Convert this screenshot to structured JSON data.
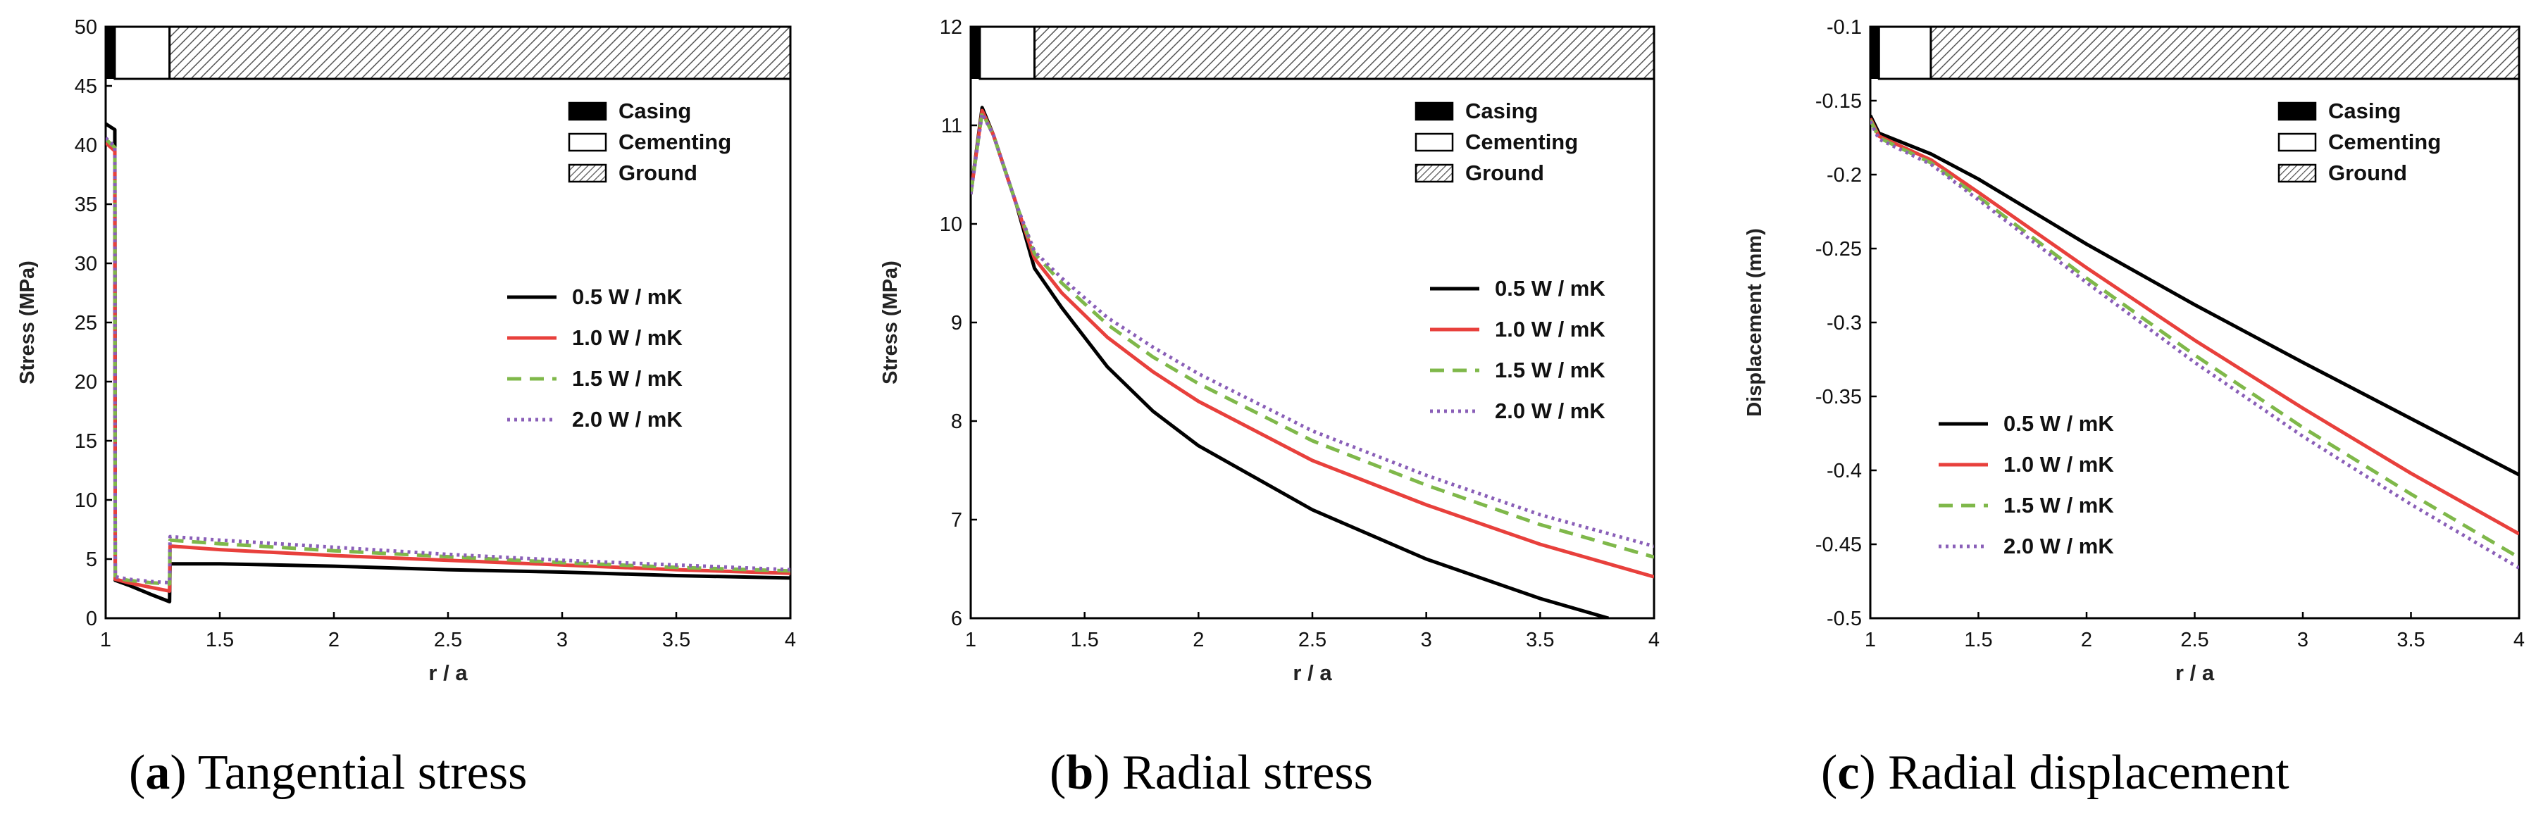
{
  "captions": [
    {
      "letter": "a",
      "text": "Tangential stress"
    },
    {
      "letter": "b",
      "text": "Radial stress"
    },
    {
      "letter": "c",
      "text": "Radial displacement"
    }
  ],
  "colors": {
    "0.5": "#000000",
    "1.0": "#e8403c",
    "1.5": "#7fb84a",
    "2.0": "#8a5fb8"
  },
  "chart_data": [
    {
      "type": "line",
      "id": "a",
      "title": "Tangential stress",
      "xlabel": "r / a",
      "ylabel": "Stress (MPa)",
      "xlim": [
        1,
        4
      ],
      "ylim": [
        0,
        50
      ],
      "xticks": [
        1,
        1.5,
        2,
        2.5,
        3,
        3.5,
        4
      ],
      "xtick_labels": [
        "1",
        "1.5",
        "2",
        "2.5",
        "3",
        "3.5",
        "4"
      ],
      "yticks": [
        0,
        5,
        10,
        15,
        20,
        25,
        30,
        35,
        40,
        45,
        50
      ],
      "ytick_labels": [
        "0",
        "5",
        "10",
        "15",
        "20",
        "25",
        "30",
        "35",
        "40",
        "45",
        "50"
      ],
      "material_legend": [
        "Casing",
        "Cementing",
        "Ground"
      ],
      "series": [
        {
          "name": "0.5 W / mK",
          "key": "0.5",
          "dash": "solid",
          "x": [
            1,
            1.04,
            1.042,
            1.1,
            1.2,
            1.28,
            1.282,
            1.5,
            2,
            2.5,
            3,
            3.5,
            4
          ],
          "y": [
            41.8,
            41.3,
            3.2,
            2.8,
            2.0,
            1.4,
            4.6,
            4.6,
            4.4,
            4.1,
            3.9,
            3.6,
            3.4
          ]
        },
        {
          "name": "1.0 W / mK",
          "key": "1.0",
          "dash": "solid",
          "x": [
            1,
            1.04,
            1.042,
            1.1,
            1.2,
            1.28,
            1.282,
            1.5,
            2,
            2.5,
            3,
            3.5,
            4
          ],
          "y": [
            40.2,
            39.5,
            3.3,
            3.0,
            2.6,
            2.3,
            6.1,
            5.8,
            5.3,
            4.9,
            4.5,
            4.1,
            3.8
          ]
        },
        {
          "name": "1.5 W / mK",
          "key": "1.5",
          "dash": "dashed",
          "x": [
            1,
            1.04,
            1.042,
            1.1,
            1.2,
            1.28,
            1.282,
            1.5,
            2,
            2.5,
            3,
            3.5,
            4
          ],
          "y": [
            40.5,
            39.8,
            3.4,
            3.2,
            3.0,
            2.9,
            6.6,
            6.3,
            5.7,
            5.2,
            4.7,
            4.3,
            4.0
          ]
        },
        {
          "name": "2.0 W / mK",
          "key": "2.0",
          "dash": "dotted",
          "x": [
            1,
            1.04,
            1.042,
            1.1,
            1.2,
            1.28,
            1.282,
            1.5,
            2,
            2.5,
            3,
            3.5,
            4
          ],
          "y": [
            40.6,
            39.9,
            3.5,
            3.3,
            3.1,
            3.0,
            6.9,
            6.6,
            6.0,
            5.4,
            4.9,
            4.5,
            4.1
          ]
        }
      ]
    },
    {
      "type": "line",
      "id": "b",
      "title": "Radial stress",
      "xlabel": "r / a",
      "ylabel": "Stress (MPa)",
      "xlim": [
        1,
        4
      ],
      "ylim": [
        6,
        12
      ],
      "xticks": [
        1,
        1.5,
        2,
        2.5,
        3,
        3.5,
        4
      ],
      "xtick_labels": [
        "1",
        "1.5",
        "2",
        "2.5",
        "3",
        "3.5",
        "4"
      ],
      "yticks": [
        6,
        7,
        8,
        9,
        10,
        11,
        12
      ],
      "ytick_labels": [
        "6",
        "7",
        "8",
        "9",
        "10",
        "11",
        "12"
      ],
      "material_legend": [
        "Casing",
        "Cementing",
        "Ground"
      ],
      "series": [
        {
          "name": "0.5 W / mK",
          "key": "0.5",
          "dash": "solid",
          "x": [
            1,
            1.05,
            1.1,
            1.2,
            1.28,
            1.4,
            1.6,
            1.8,
            2,
            2.5,
            3,
            3.5,
            3.8
          ],
          "y": [
            10.3,
            11.18,
            10.9,
            10.2,
            9.55,
            9.15,
            8.55,
            8.1,
            7.75,
            7.1,
            6.6,
            6.2,
            6.0
          ]
        },
        {
          "name": "1.0 W / mK",
          "key": "1.0",
          "dash": "solid",
          "x": [
            1,
            1.05,
            1.1,
            1.2,
            1.28,
            1.4,
            1.6,
            1.8,
            2,
            2.5,
            3,
            3.5,
            4
          ],
          "y": [
            10.3,
            11.15,
            10.9,
            10.2,
            9.65,
            9.3,
            8.85,
            8.5,
            8.2,
            7.6,
            7.15,
            6.75,
            6.42
          ]
        },
        {
          "name": "1.5 W / mK",
          "key": "1.5",
          "dash": "dashed",
          "x": [
            1,
            1.05,
            1.1,
            1.2,
            1.28,
            1.4,
            1.6,
            1.8,
            2,
            2.5,
            3,
            3.5,
            4
          ],
          "y": [
            10.3,
            11.13,
            10.9,
            10.2,
            9.7,
            9.4,
            8.98,
            8.65,
            8.38,
            7.8,
            7.35,
            6.95,
            6.62
          ]
        },
        {
          "name": "2.0 W / mK",
          "key": "2.0",
          "dash": "dotted",
          "x": [
            1,
            1.05,
            1.1,
            1.2,
            1.28,
            1.4,
            1.6,
            1.8,
            2,
            2.5,
            3,
            3.5,
            4
          ],
          "y": [
            10.3,
            11.12,
            10.9,
            10.2,
            9.72,
            9.45,
            9.05,
            8.75,
            8.48,
            7.9,
            7.45,
            7.05,
            6.73
          ]
        }
      ]
    },
    {
      "type": "line",
      "id": "c",
      "title": "Radial displacement",
      "xlabel": "r / a",
      "ylabel": "Displacement (mm)",
      "xlim": [
        1,
        4
      ],
      "ylim": [
        -0.5,
        -0.1
      ],
      "xticks": [
        1,
        1.5,
        2,
        2.5,
        3,
        3.5,
        4
      ],
      "xtick_labels": [
        "1",
        "1.5",
        "2",
        "2.5",
        "3",
        "3.5",
        "4"
      ],
      "yticks": [
        -0.5,
        -0.45,
        -0.4,
        -0.35,
        -0.3,
        -0.25,
        -0.2,
        -0.15,
        -0.1
      ],
      "ytick_labels": [
        "-0.5",
        "-0.45",
        "-0.4",
        "-0.35",
        "-0.3",
        "-0.25",
        "-0.2",
        "-0.15",
        "-0.1"
      ],
      "material_legend": [
        "Casing",
        "Cementing",
        "Ground"
      ],
      "series": [
        {
          "name": "0.5 W / mK",
          "key": "0.5",
          "dash": "solid",
          "x": [
            1,
            1.04,
            1.28,
            1.5,
            2,
            2.5,
            3,
            3.5,
            4
          ],
          "y": [
            -0.16,
            -0.172,
            -0.186,
            -0.203,
            -0.247,
            -0.288,
            -0.327,
            -0.365,
            -0.403
          ]
        },
        {
          "name": "1.0 W / mK",
          "key": "1.0",
          "dash": "solid",
          "x": [
            1,
            1.04,
            1.28,
            1.5,
            2,
            2.5,
            3,
            3.5,
            4
          ],
          "y": [
            -0.162,
            -0.174,
            -0.19,
            -0.212,
            -0.263,
            -0.312,
            -0.358,
            -0.402,
            -0.443
          ]
        },
        {
          "name": "1.5 W / mK",
          "key": "1.5",
          "dash": "dashed",
          "x": [
            1,
            1.04,
            1.28,
            1.5,
            2,
            2.5,
            3,
            3.5,
            4
          ],
          "y": [
            -0.163,
            -0.175,
            -0.192,
            -0.215,
            -0.27,
            -0.322,
            -0.371,
            -0.416,
            -0.459
          ]
        },
        {
          "name": "2.0 W / mK",
          "key": "2.0",
          "dash": "dotted",
          "x": [
            1,
            1.04,
            1.28,
            1.5,
            2,
            2.5,
            3,
            3.5,
            4
          ],
          "y": [
            -0.164,
            -0.176,
            -0.193,
            -0.217,
            -0.273,
            -0.327,
            -0.377,
            -0.423,
            -0.466
          ]
        }
      ]
    }
  ]
}
